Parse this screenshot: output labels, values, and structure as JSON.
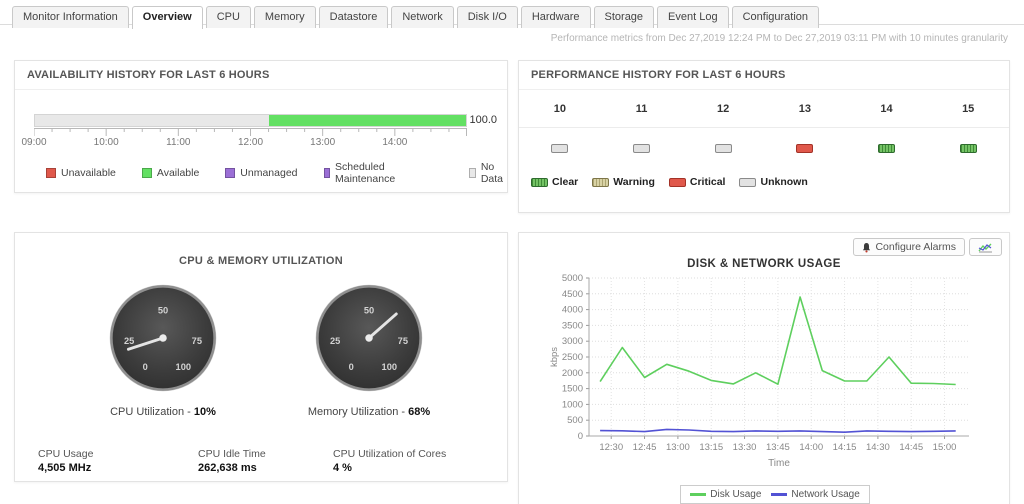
{
  "tabs": {
    "active": "Overview",
    "items": [
      {
        "label": "Monitor Information"
      },
      {
        "label": "Overview"
      },
      {
        "label": "CPU"
      },
      {
        "label": "Memory"
      },
      {
        "label": "Datastore"
      },
      {
        "label": "Network"
      },
      {
        "label": "Disk I/O"
      },
      {
        "label": "Hardware"
      },
      {
        "label": "Storage"
      },
      {
        "label": "Event Log"
      },
      {
        "label": "Configuration"
      }
    ]
  },
  "meta_text": "Performance metrics from Dec 27,2019 12:24 PM to Dec 27,2019 03:11 PM with 10 minutes granularity",
  "availability": {
    "title": "AVAILABILITY HISTORY FOR LAST 6 HOURS",
    "value_label": "100.0",
    "segments": [
      {
        "status": "no-data",
        "percent": 54.2,
        "color": "#e8e8e8"
      },
      {
        "status": "available",
        "percent": 45.8,
        "color": "#63e063"
      }
    ],
    "axis_hour_labels": [
      "09:00",
      "10:00",
      "11:00",
      "12:00",
      "13:00",
      "14:00"
    ],
    "legend": [
      {
        "label": "Unavailable",
        "color": "#e0584b"
      },
      {
        "label": "Available",
        "color": "#63e063"
      },
      {
        "label": "Unmanaged",
        "color": "#9b6fd6"
      },
      {
        "label": "Scheduled Maintenance",
        "color": "#9b6fd6"
      },
      {
        "label": "No Data",
        "color": "#e8e8e8"
      }
    ]
  },
  "performance": {
    "title": "PERFORMANCE HISTORY FOR LAST 6 HOURS",
    "hours": [
      {
        "label": "10",
        "status": "unknown"
      },
      {
        "label": "11",
        "status": "unknown"
      },
      {
        "label": "12",
        "status": "unknown"
      },
      {
        "label": "13",
        "status": "critical"
      },
      {
        "label": "14",
        "status": "clear"
      },
      {
        "label": "15",
        "status": "clear"
      }
    ],
    "status_colors": {
      "clear": "#74c365",
      "warning": "#d8d2a4",
      "critical": "#e0584b",
      "unknown": "#e2e2e2"
    },
    "legend": [
      {
        "label": "Clear",
        "status": "clear"
      },
      {
        "label": "Warning",
        "status": "warning"
      },
      {
        "label": "Critical",
        "status": "critical"
      },
      {
        "label": "Unknown",
        "status": "unknown"
      }
    ]
  },
  "cpu_memory": {
    "title": "CPU & MEMORY UTILIZATION",
    "gauge_ticks": [
      "0",
      "25",
      "50",
      "75",
      "100"
    ],
    "gauges": [
      {
        "label_prefix": "CPU Utilization - ",
        "value": 10,
        "display": "10%"
      },
      {
        "label_prefix": "Memory Utilization - ",
        "value": 68,
        "display": "68%"
      }
    ],
    "stats": [
      {
        "label": "CPU Usage",
        "value": "4,505 MHz"
      },
      {
        "label": "CPU Idle Time",
        "value": "262,638 ms"
      },
      {
        "label": "CPU Utilization of Cores",
        "value": "4 %"
      }
    ]
  },
  "disk_network": {
    "configure_alarms_label": "Configure Alarms"
  },
  "chart_data": {
    "type": "line",
    "title": "DISK & NETWORK USAGE",
    "xlabel": "Time",
    "ylabel": "kbps",
    "ylim": [
      0,
      5000
    ],
    "ytick_step": 500,
    "xlim_minutes": [
      740,
      911
    ],
    "x_minutes": [
      745,
      755,
      765,
      775,
      785,
      795,
      805,
      815,
      825,
      835,
      845,
      855,
      865,
      875,
      885,
      895,
      905
    ],
    "x_tick_minutes": [
      750,
      765,
      780,
      795,
      810,
      825,
      840,
      855,
      870,
      885,
      900
    ],
    "x_tick_labels": [
      "12:30",
      "12:45",
      "13:00",
      "13:15",
      "13:30",
      "13:45",
      "14:00",
      "14:15",
      "14:30",
      "14:45",
      "15:00"
    ],
    "grid": true,
    "legend_position": "bottom",
    "series": [
      {
        "name": "Disk Usage",
        "color": "#5ecf5e",
        "values": [
          1720,
          2800,
          1850,
          2270,
          2050,
          1760,
          1650,
          2000,
          1640,
          4400,
          2070,
          1740,
          1740,
          2500,
          1670,
          1660,
          1630
        ]
      },
      {
        "name": "Network Usage",
        "color": "#5252d4",
        "values": [
          170,
          165,
          140,
          210,
          190,
          150,
          140,
          160,
          150,
          160,
          140,
          120,
          160,
          150,
          140,
          150,
          160
        ]
      }
    ]
  }
}
